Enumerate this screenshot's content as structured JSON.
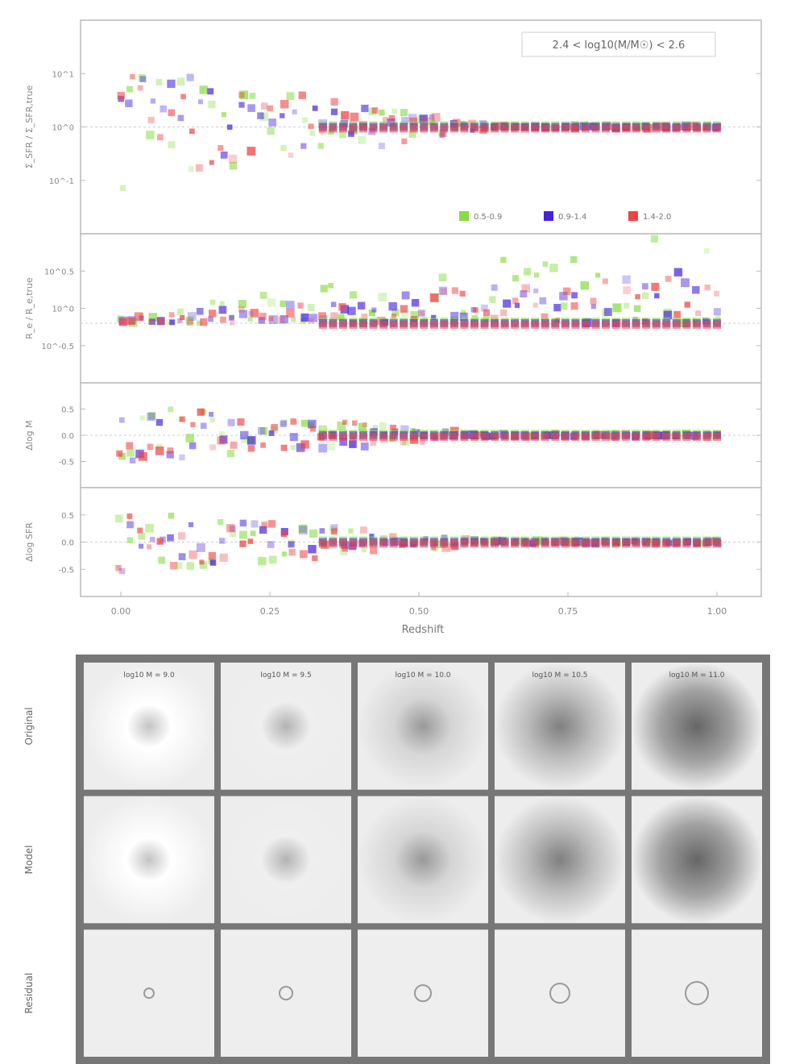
{
  "figure": {
    "annotation": "2.4 < log10(M/M☉) < 2.6",
    "xlabel": "Redshift",
    "legend": [
      {
        "label": "0.5-0.9",
        "color": "#88dd44"
      },
      {
        "label": "0.9-1.4",
        "color": "#4422dd"
      },
      {
        "label": "1.4-2.0",
        "color": "#ee4444"
      }
    ],
    "panel_ylabels": [
      "Σ_SFR / Σ_SFR,true",
      "R_e / R_e,true",
      "Δlog M",
      "Δlog SFR"
    ],
    "panel_yticks": [
      [
        "10^1",
        "10^0",
        "10^-1"
      ],
      [
        "10^0.5",
        "10^0",
        "10^-0.5"
      ],
      [
        "0.5",
        "0.0",
        "-0.5"
      ],
      [
        "0.5",
        "0.0",
        "-0.5"
      ]
    ],
    "xticks": [
      "0.00",
      "0.25",
      "0.50",
      "0.75",
      "1.00"
    ]
  },
  "chart_data": {
    "type": "scatter",
    "x_range": [
      0,
      1.0
    ],
    "series": [
      {
        "name": "0.5-0.9",
        "color": "#88dd44"
      },
      {
        "name": "0.9-1.4",
        "color": "#4422dd"
      },
      {
        "name": "1.4-2.0",
        "color": "#ee4444"
      }
    ],
    "panels": [
      {
        "id": "sfr_ratio",
        "ylim": [
          -1.5,
          1.5
        ],
        "reference": 0
      },
      {
        "id": "radius_ratio",
        "ylim": [
          -0.6,
          0.9
        ],
        "reference": 0
      },
      {
        "id": "mass_offset",
        "ylim": [
          -0.7,
          0.7
        ],
        "reference": 0
      },
      {
        "id": "sfr_offset",
        "ylim": [
          -0.7,
          0.7
        ],
        "reference": 0
      }
    ]
  },
  "image_grid": {
    "row_labels": [
      "Original",
      "Model",
      "Residual"
    ],
    "column_titles": [
      "log10 M = 9.0",
      "log10 M = 9.5",
      "log10 M = 10.0",
      "log10 M = 10.5",
      "log10 M = 11.0"
    ],
    "column_intensity": [
      0.35,
      0.45,
      0.6,
      0.75,
      0.9
    ]
  }
}
